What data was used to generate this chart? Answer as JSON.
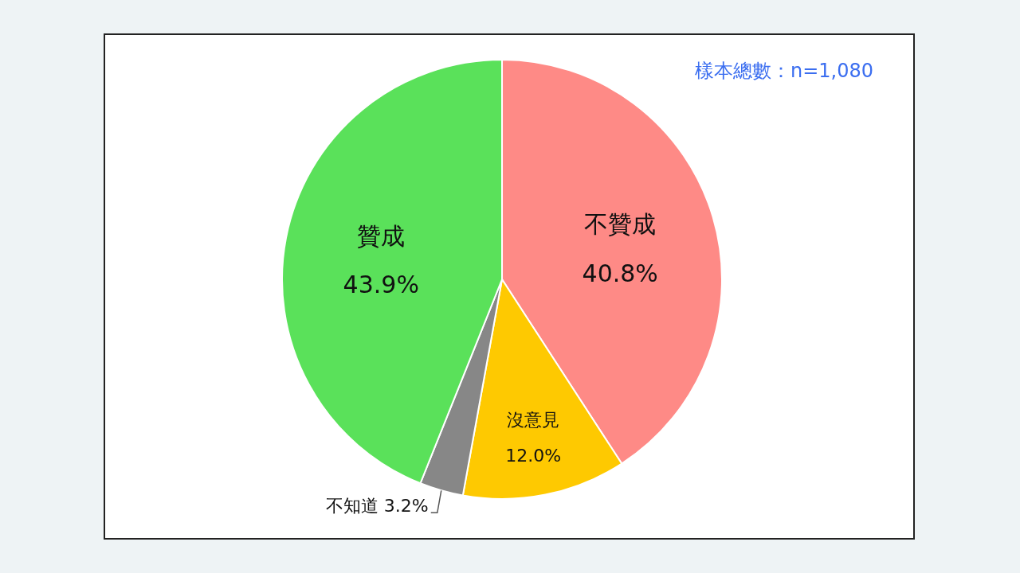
{
  "chart_data": {
    "type": "pie",
    "categories": [
      "不贊成",
      "沒意見",
      "不知道",
      "贊成"
    ],
    "values": [
      40.8,
      12.0,
      3.2,
      43.9
    ],
    "colors": [
      "#fe8a86",
      "#fec901",
      "#878787",
      "#5ae15a"
    ],
    "value_labels": [
      "40.8%",
      "12.0%",
      "3.2%",
      "43.9%"
    ],
    "annotations": [
      "樣本總數：n=1,080"
    ]
  }
}
